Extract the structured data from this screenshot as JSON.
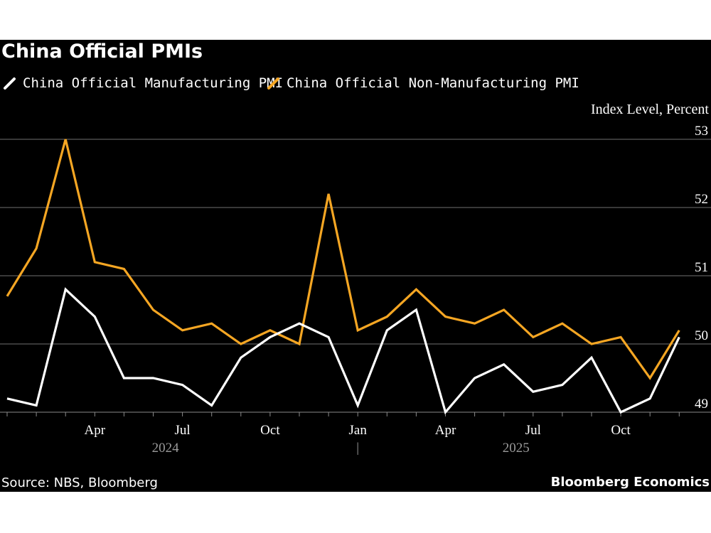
{
  "header": {
    "title": "China Official PMIs",
    "unit_label": "Index Level, Percent"
  },
  "legend": [
    {
      "label": "China Official Manufacturing PMI",
      "color": "#ffffff"
    },
    {
      "label": "China Official Non-Manufacturing PMI",
      "color": "#f5a623"
    }
  ],
  "footer": {
    "source": "Source: NBS, Bloomberg",
    "brand": "Bloomberg Economics"
  },
  "chart_data": {
    "type": "line",
    "title": "China Official PMIs",
    "ylabel": "Index Level, Percent",
    "xlabel": "",
    "ylim": [
      49,
      53
    ],
    "yticks": [
      49,
      50,
      51,
      52,
      53
    ],
    "grid": true,
    "y_axis_position": "right",
    "legend_position": "top-left",
    "x": [
      "2024-01",
      "2024-02",
      "2024-03",
      "2024-04",
      "2024-05",
      "2024-06",
      "2024-07",
      "2024-08",
      "2024-09",
      "2024-10",
      "2024-11",
      "2024-12",
      "2025-01",
      "2025-02",
      "2025-03",
      "2025-04",
      "2025-05",
      "2025-06",
      "2025-07",
      "2025-08",
      "2025-09",
      "2025-10",
      "2025-11",
      "2025-12"
    ],
    "x_tick_labels": [
      {
        "index": 3,
        "label": "Apr"
      },
      {
        "index": 6,
        "label": "Jul"
      },
      {
        "index": 9,
        "label": "Oct"
      },
      {
        "index": 12,
        "label": "Jan"
      },
      {
        "index": 15,
        "label": "Apr"
      },
      {
        "index": 18,
        "label": "Jul"
      },
      {
        "index": 21,
        "label": "Oct"
      }
    ],
    "year_labels": [
      {
        "center_index": 6,
        "label": "2024"
      },
      {
        "center_index": 18,
        "label": "2025"
      }
    ],
    "year_separator_index": 12,
    "year_separator_label": "|",
    "series": [
      {
        "name": "China Official Manufacturing PMI",
        "color": "#ffffff",
        "values": [
          49.2,
          49.1,
          50.8,
          50.4,
          49.5,
          49.5,
          49.4,
          49.1,
          49.8,
          50.1,
          50.3,
          50.1,
          49.1,
          50.2,
          50.5,
          49.0,
          49.5,
          49.7,
          49.3,
          49.4,
          49.8,
          49.0,
          49.2,
          50.1
        ]
      },
      {
        "name": "China Official Non-Manufacturing PMI",
        "color": "#f5a623",
        "values": [
          50.7,
          51.4,
          53.0,
          51.2,
          51.1,
          50.5,
          50.2,
          50.3,
          50.0,
          50.2,
          50.0,
          52.2,
          50.2,
          50.4,
          50.8,
          50.4,
          50.3,
          50.5,
          50.1,
          50.3,
          50.0,
          50.1,
          49.5,
          50.2
        ]
      }
    ]
  }
}
